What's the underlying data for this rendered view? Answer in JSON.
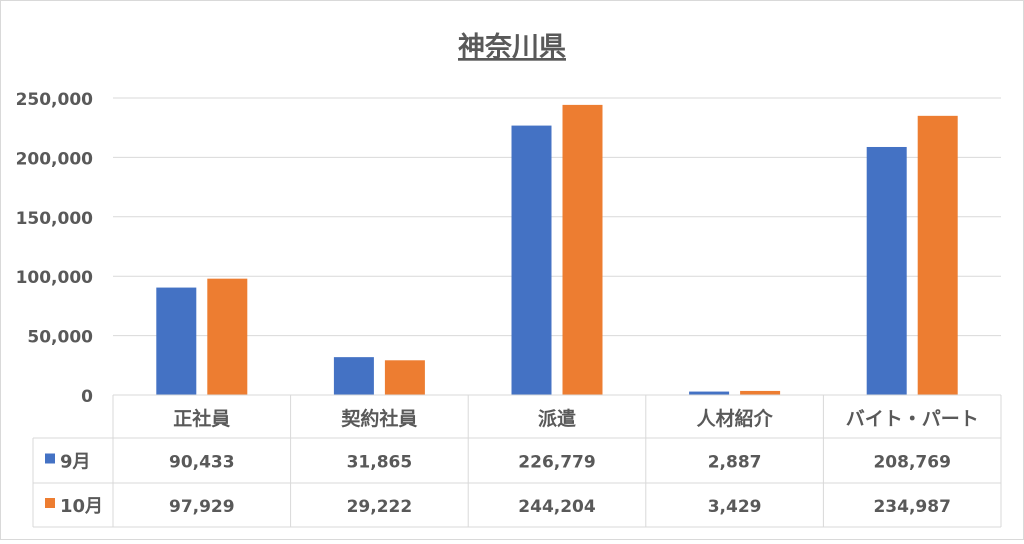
{
  "chart_data": {
    "type": "bar",
    "title": "神奈川県",
    "categories": [
      "正社員",
      "契約社員",
      "派遣",
      "人材紹介",
      "バイト・パート"
    ],
    "series": [
      {
        "name": "9月",
        "values": [
          90433,
          31865,
          226779,
          2887,
          208769
        ],
        "color": "#4472C4"
      },
      {
        "name": "10月",
        "values": [
          97929,
          29222,
          244204,
          3429,
          234987
        ],
        "color": "#ED7D31"
      }
    ],
    "y_ticks": [
      "0",
      "50,000",
      "100,000",
      "150,000",
      "200,000",
      "250,000"
    ],
    "table_values": {
      "9月": [
        "90,433",
        "31,865",
        "226,779",
        "2,887",
        "208,769"
      ],
      "10月": [
        "97,929",
        "29,222",
        "244,204",
        "3,429",
        "234,987"
      ]
    },
    "ylim": [
      0,
      250000
    ],
    "grid": true,
    "legend": "data-table"
  }
}
